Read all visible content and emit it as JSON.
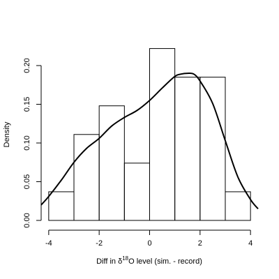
{
  "chart_data": {
    "type": "histogram",
    "title": "",
    "xlabel": {
      "prefix": "Diff in ",
      "delta": "δ",
      "superscript": "18",
      "suffix": "O level (sim. - record)"
    },
    "ylabel": "Density",
    "xlim": [
      -4.3,
      4.3
    ],
    "ylim": [
      0,
      0.235
    ],
    "x_ticks": [
      {
        "value": -4,
        "label": "-4"
      },
      {
        "value": -2,
        "label": "-2"
      },
      {
        "value": 0,
        "label": "0"
      },
      {
        "value": 2,
        "label": "2"
      },
      {
        "value": 4,
        "label": "4"
      }
    ],
    "y_ticks": [
      {
        "value": 0,
        "label": "0.00"
      },
      {
        "value": 0.05,
        "label": "0.05"
      },
      {
        "value": 0.1,
        "label": "0.10"
      },
      {
        "value": 0.15,
        "label": "0.15"
      },
      {
        "value": 0.2,
        "label": "0.20"
      }
    ],
    "bins": [
      {
        "x0": -4,
        "x1": -3,
        "density": 0.037
      },
      {
        "x0": -3,
        "x1": -2,
        "density": 0.111
      },
      {
        "x0": -2,
        "x1": -1,
        "density": 0.148
      },
      {
        "x0": -1,
        "x1": 0,
        "density": 0.074
      },
      {
        "x0": 0,
        "x1": 1,
        "density": 0.222
      },
      {
        "x0": 1,
        "x1": 2,
        "density": 0.185
      },
      {
        "x0": 2,
        "x1": 3,
        "density": 0.185
      },
      {
        "x0": 3,
        "x1": 4,
        "density": 0.037
      }
    ],
    "density_curve": {
      "x": [
        -4.3,
        -4.0,
        -3.5,
        -3.0,
        -2.5,
        -2.0,
        -1.5,
        -1.0,
        -0.5,
        0.0,
        0.5,
        1.0,
        1.25,
        1.5,
        1.75,
        2.0,
        2.5,
        3.0,
        3.5,
        4.0,
        4.3
      ],
      "y": [
        0.02,
        0.031,
        0.052,
        0.075,
        0.093,
        0.106,
        0.122,
        0.133,
        0.142,
        0.155,
        0.171,
        0.186,
        0.189,
        0.19,
        0.189,
        0.18,
        0.151,
        0.103,
        0.056,
        0.027,
        0.015
      ]
    },
    "grid": false,
    "legend": "none"
  }
}
